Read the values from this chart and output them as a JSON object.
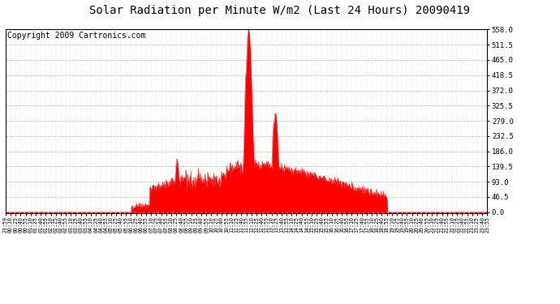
{
  "title": "Solar Radiation per Minute W/m2 (Last 24 Hours) 20090419",
  "copyright": "Copyright 2009 Cartronics.com",
  "y_ticks": [
    0.0,
    46.5,
    93.0,
    139.5,
    186.0,
    232.5,
    279.0,
    325.5,
    372.0,
    418.5,
    465.0,
    511.5,
    558.0
  ],
  "y_max": 558.0,
  "y_min": 0.0,
  "fill_color": "#ff0000",
  "line_color": "#ff0000",
  "background_color": "#ffffff",
  "grid_color": "#888888",
  "dashed_baseline_color": "#dd0000",
  "title_fontsize": 10,
  "copyright_fontsize": 7,
  "n_points": 1440
}
